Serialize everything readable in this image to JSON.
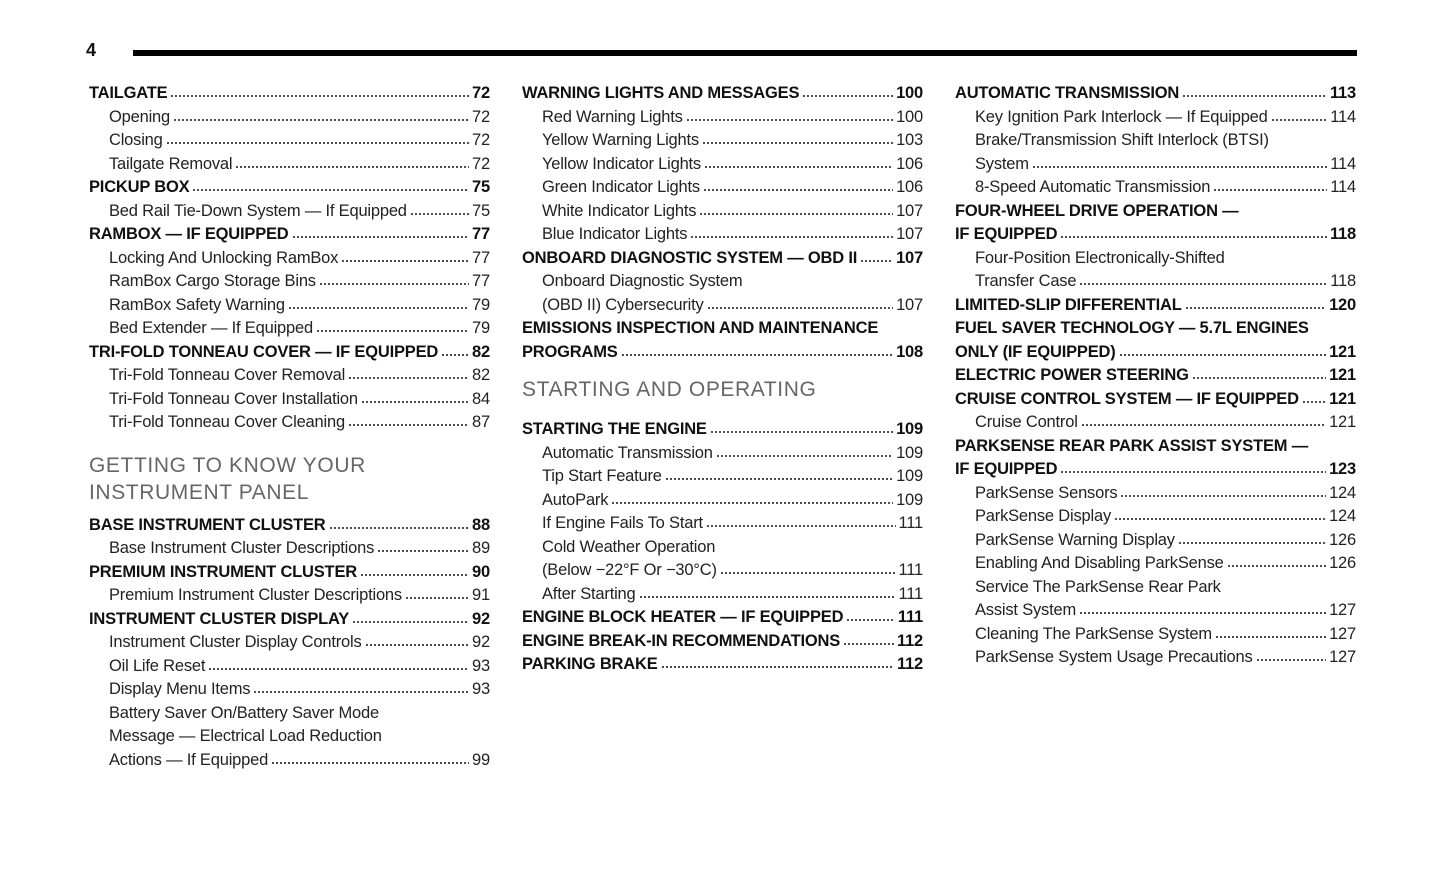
{
  "page_number": "4",
  "columns": [
    {
      "blocks": [
        {
          "rows": [
            {
              "t": "TAILGATE",
              "p": "72",
              "lvl": 0
            },
            {
              "t": "Opening",
              "p": "72",
              "lvl": 1
            },
            {
              "t": "Closing",
              "p": "72",
              "lvl": 1
            },
            {
              "t": "Tailgate Removal",
              "p": "72",
              "lvl": 1
            },
            {
              "t": "PICKUP BOX",
              "p": "75",
              "lvl": 0
            },
            {
              "t": "Bed Rail Tie-Down System — If Equipped",
              "p": "75",
              "lvl": 1
            },
            {
              "t": "RAMBOX — IF EQUIPPED",
              "p": "77",
              "lvl": 0
            },
            {
              "t": "Locking And Unlocking RamBox",
              "p": "77",
              "lvl": 1
            },
            {
              "t": "RamBox Cargo Storage Bins",
              "p": "77",
              "lvl": 1
            },
            {
              "t": "RamBox Safety Warning",
              "p": "79",
              "lvl": 1
            },
            {
              "t": "Bed Extender — If Equipped",
              "p": "79",
              "lvl": 1
            },
            {
              "t": "TRI-FOLD TONNEAU COVER — IF EQUIPPED",
              "p": "82",
              "lvl": 0
            },
            {
              "t": "Tri-Fold Tonneau Cover Removal",
              "p": "82",
              "lvl": 1
            },
            {
              "t": "Tri-Fold Tonneau Cover Installation",
              "p": "84",
              "lvl": 1
            },
            {
              "t": "Tri-Fold Tonneau Cover Cleaning",
              "p": "87",
              "lvl": 1
            }
          ]
        },
        {
          "heading": [
            "GETTING TO KNOW YOUR",
            "INSTRUMENT PANEL"
          ],
          "rows": [
            {
              "t": "BASE INSTRUMENT CLUSTER",
              "p": "88",
              "lvl": 0
            },
            {
              "t": "Base Instrument Cluster Descriptions",
              "p": "89",
              "lvl": 1
            },
            {
              "t": "PREMIUM INSTRUMENT CLUSTER",
              "p": "90",
              "lvl": 0
            },
            {
              "t": "Premium Instrument Cluster Descriptions",
              "p": "91",
              "lvl": 1
            },
            {
              "t": "INSTRUMENT CLUSTER DISPLAY",
              "p": "92",
              "lvl": 0
            },
            {
              "t": "Instrument Cluster Display Controls",
              "p": "92",
              "lvl": 1
            },
            {
              "t": "Oil Life Reset",
              "p": "93",
              "lvl": 1
            },
            {
              "t": "Display Menu Items",
              "p": "93",
              "lvl": 1
            },
            {
              "t": "Battery Saver On/Battery Saver Mode",
              "lvl": 1
            },
            {
              "t": "Message — Electrical Load Reduction",
              "lvl": 1
            },
            {
              "t": "Actions — If Equipped",
              "p": "99",
              "lvl": 1
            }
          ]
        }
      ]
    },
    {
      "blocks": [
        {
          "rows": [
            {
              "t": "WARNING LIGHTS AND MESSAGES",
              "p": "100",
              "lvl": 0
            },
            {
              "t": "Red Warning Lights",
              "p": "100",
              "lvl": 1
            },
            {
              "t": "Yellow Warning Lights",
              "p": "103",
              "lvl": 1
            },
            {
              "t": "Yellow Indicator Lights",
              "p": "106",
              "lvl": 1
            },
            {
              "t": "Green Indicator Lights",
              "p": "106",
              "lvl": 1
            },
            {
              "t": "White Indicator Lights",
              "p": "107",
              "lvl": 1
            },
            {
              "t": "Blue Indicator Lights",
              "p": "107",
              "lvl": 1
            },
            {
              "t": "ONBOARD DIAGNOSTIC SYSTEM — OBD II",
              "p": "107",
              "lvl": 0
            },
            {
              "t": "Onboard Diagnostic System",
              "lvl": 1
            },
            {
              "t": "(OBD II) Cybersecurity",
              "p": "107",
              "lvl": 1
            },
            {
              "t": "EMISSIONS INSPECTION AND MAINTENANCE",
              "lvl": 0
            },
            {
              "t": "PROGRAMS",
              "p": "108",
              "lvl": 0
            }
          ]
        },
        {
          "heading": [
            "STARTING AND OPERATING"
          ],
          "rows": [
            {
              "t": "STARTING THE ENGINE",
              "p": "109",
              "lvl": 0
            },
            {
              "t": "Automatic Transmission",
              "p": "109",
              "lvl": 1
            },
            {
              "t": "Tip Start Feature",
              "p": "109",
              "lvl": 1
            },
            {
              "t": "AutoPark",
              "p": "109",
              "lvl": 1
            },
            {
              "t": "If Engine Fails To Start",
              "p": "111",
              "lvl": 1
            },
            {
              "t": "Cold Weather Operation",
              "lvl": 1
            },
            {
              "t": "(Below −22°F Or −30°C)",
              "p": "111",
              "lvl": 1
            },
            {
              "t": "After Starting",
              "p": "111",
              "lvl": 1
            },
            {
              "t": "ENGINE BLOCK HEATER — IF EQUIPPED",
              "p": "111",
              "lvl": 0
            },
            {
              "t": "ENGINE BREAK-IN RECOMMENDATIONS",
              "p": "112",
              "lvl": 0
            },
            {
              "t": "PARKING BRAKE",
              "p": "112",
              "lvl": 0
            }
          ]
        }
      ]
    },
    {
      "blocks": [
        {
          "rows": [
            {
              "t": "AUTOMATIC TRANSMISSION",
              "p": "113",
              "lvl": 0
            },
            {
              "t": "Key Ignition Park Interlock — If Equipped",
              "p": "114",
              "lvl": 1
            },
            {
              "t": "Brake/Transmission Shift Interlock (BTSI)",
              "lvl": 1
            },
            {
              "t": "System",
              "p": "114",
              "lvl": 1
            },
            {
              "t": "8-Speed Automatic Transmission",
              "p": "114",
              "lvl": 1
            },
            {
              "t": "FOUR-WHEEL DRIVE OPERATION —",
              "lvl": 0
            },
            {
              "t": "IF EQUIPPED",
              "p": "118",
              "lvl": 0
            },
            {
              "t": "Four-Position Electronically-Shifted",
              "lvl": 1
            },
            {
              "t": "Transfer Case",
              "p": "118",
              "lvl": 1
            },
            {
              "t": "LIMITED-SLIP DIFFERENTIAL",
              "p": "120",
              "lvl": 0
            },
            {
              "t": "FUEL SAVER TECHNOLOGY — 5.7L ENGINES",
              "lvl": 0
            },
            {
              "t": "ONLY (IF EQUIPPED)",
              "p": "121",
              "lvl": 0
            },
            {
              "t": "ELECTRIC POWER STEERING",
              "p": "121",
              "lvl": 0
            },
            {
              "t": "CRUISE CONTROL SYSTEM — IF EQUIPPED",
              "p": "121",
              "lvl": 0
            },
            {
              "t": "Cruise Control",
              "p": "121",
              "lvl": 1
            },
            {
              "t": "PARKSENSE REAR PARK ASSIST SYSTEM —",
              "lvl": 0
            },
            {
              "t": "IF EQUIPPED",
              "p": "123",
              "lvl": 0
            },
            {
              "t": "ParkSense Sensors",
              "p": "124",
              "lvl": 1
            },
            {
              "t": "ParkSense Display",
              "p": "124",
              "lvl": 1
            },
            {
              "t": "ParkSense Warning Display",
              "p": "126",
              "lvl": 1
            },
            {
              "t": "Enabling And Disabling ParkSense",
              "p": "126",
              "lvl": 1
            },
            {
              "t": "Service The ParkSense Rear Park",
              "lvl": 1
            },
            {
              "t": "Assist System",
              "p": "127",
              "lvl": 1
            },
            {
              "t": "Cleaning The ParkSense System",
              "p": "127",
              "lvl": 1
            },
            {
              "t": "ParkSense System Usage Precautions",
              "p": "127",
              "lvl": 1
            }
          ]
        }
      ]
    }
  ]
}
